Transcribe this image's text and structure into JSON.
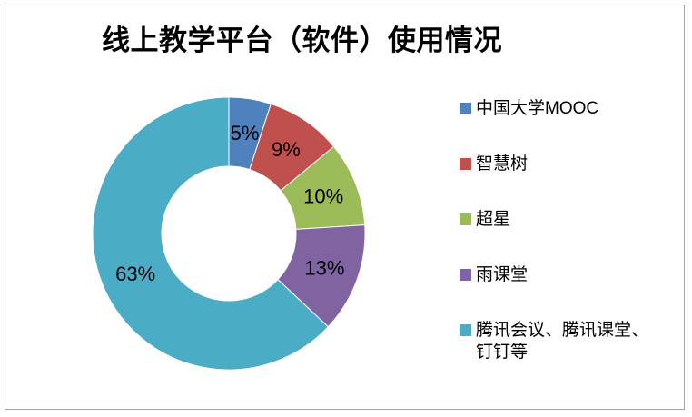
{
  "chart_data": {
    "type": "pie",
    "subtype": "donut",
    "title": "线上教学平台（软件）使用情况",
    "categories": [
      "中国大学MOOC",
      "智慧树",
      "超星",
      "雨课堂",
      "腾讯会议、腾讯课堂、钉钉等"
    ],
    "values": [
      5,
      9,
      10,
      13,
      63
    ],
    "unit": "%",
    "data_labels": [
      "5%",
      "9%",
      "10%",
      "13%",
      "63%"
    ],
    "colors": [
      "#4F81BD",
      "#C0504D",
      "#9BBB59",
      "#8064A2",
      "#4BACC6"
    ],
    "legend_position": "right",
    "start_angle_deg": 0,
    "direction": "clockwise",
    "inner_radius_ratio": 0.49,
    "label_color": "#000000",
    "background": "#ffffff",
    "frame_border_color": "#a6a6a6"
  }
}
